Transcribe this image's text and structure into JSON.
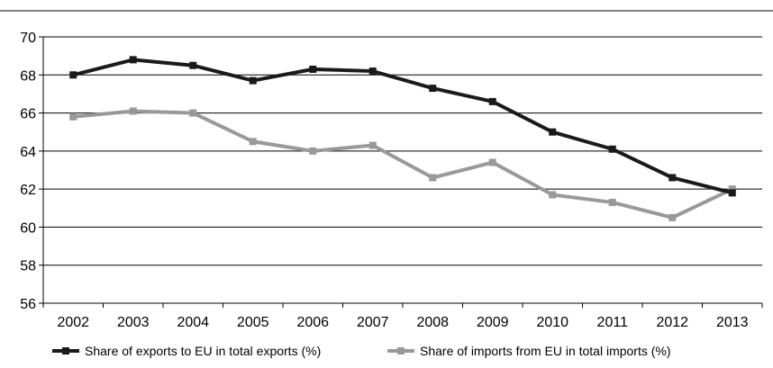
{
  "chart_data": {
    "type": "line",
    "title": "",
    "xlabel": "",
    "ylabel": "",
    "categories": [
      "2002",
      "2003",
      "2004",
      "2005",
      "2006",
      "2007",
      "2008",
      "2009",
      "2010",
      "2011",
      "2012",
      "2013"
    ],
    "ylim": [
      56,
      70
    ],
    "yticks": [
      56,
      58,
      60,
      62,
      64,
      66,
      68,
      70
    ],
    "grid": true,
    "legend_position": "bottom",
    "series": [
      {
        "name": "Share of exports to EU in total exports (%)",
        "color": "#1a1a1a",
        "marker": "square",
        "values": [
          68.0,
          68.8,
          68.5,
          67.7,
          68.3,
          68.2,
          67.3,
          66.6,
          65.0,
          64.1,
          62.6,
          61.8
        ]
      },
      {
        "name": "Share of imports from EU in total imports (%)",
        "color": "#999999",
        "marker": "square",
        "values": [
          65.8,
          66.1,
          66.0,
          64.5,
          64.0,
          64.3,
          62.6,
          63.4,
          61.7,
          61.3,
          60.5,
          62.0
        ]
      }
    ]
  }
}
